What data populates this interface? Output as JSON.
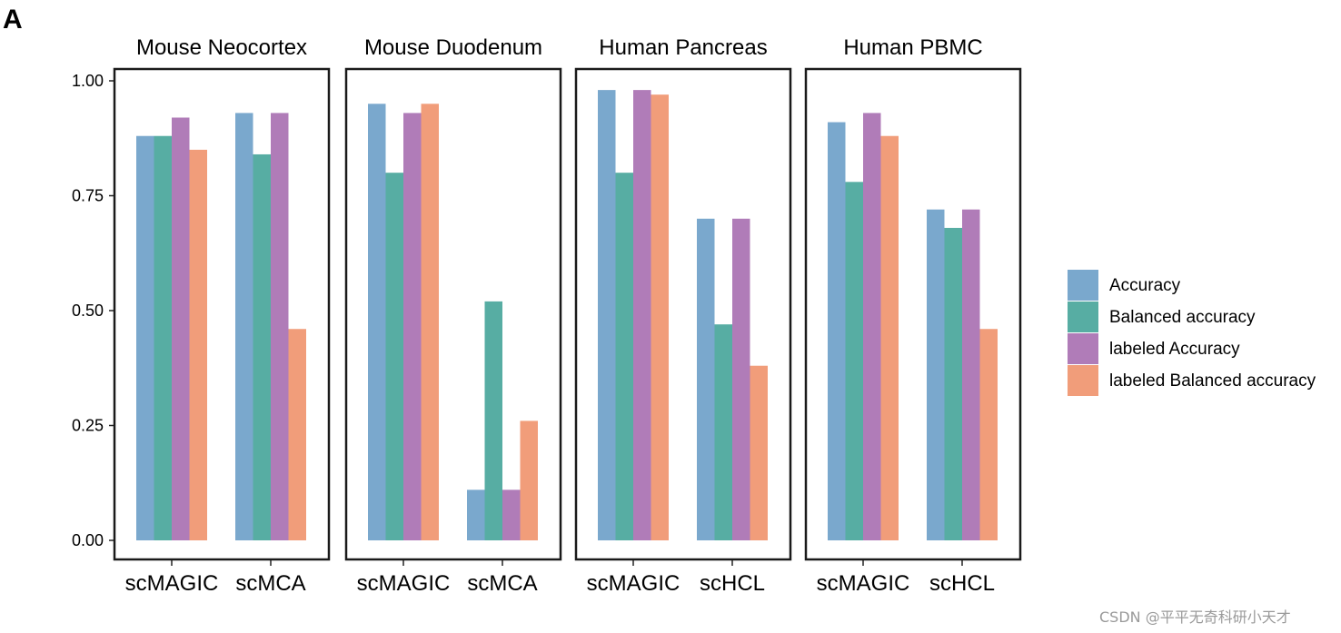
{
  "panel_label": "A",
  "watermark": "CSDN @平平无奇科研小天才",
  "colors": {
    "Accuracy": "#7aa8cd",
    "Balanced accuracy": "#57ada3",
    "labeled Accuracy": "#b07cb8",
    "labeled Balanced accuracy": "#f19d7a"
  },
  "chart_data": {
    "type": "bar",
    "ylim": [
      0,
      1.0
    ],
    "yticks": [
      0.0,
      0.25,
      0.5,
      0.75,
      1.0
    ],
    "ytick_labels": [
      "0.00",
      "0.25",
      "0.50",
      "0.75",
      "1.00"
    ],
    "legend_position": "right",
    "legend": [
      "Accuracy",
      "Balanced accuracy",
      "labeled Accuracy",
      "labeled Balanced accuracy"
    ],
    "facets": [
      {
        "title": "Mouse Neocortex",
        "categories": [
          "scMAGIC",
          "scMCA"
        ],
        "series": [
          {
            "name": "Accuracy",
            "values": [
              0.88,
              0.93
            ]
          },
          {
            "name": "Balanced accuracy",
            "values": [
              0.88,
              0.84
            ]
          },
          {
            "name": "labeled Accuracy",
            "values": [
              0.92,
              0.93
            ]
          },
          {
            "name": "labeled Balanced accuracy",
            "values": [
              0.85,
              0.46
            ]
          }
        ]
      },
      {
        "title": "Mouse Duodenum",
        "categories": [
          "scMAGIC",
          "scMCA"
        ],
        "series": [
          {
            "name": "Accuracy",
            "values": [
              0.95,
              0.11
            ]
          },
          {
            "name": "Balanced accuracy",
            "values": [
              0.8,
              0.52
            ]
          },
          {
            "name": "labeled Accuracy",
            "values": [
              0.93,
              0.11
            ]
          },
          {
            "name": "labeled Balanced accuracy",
            "values": [
              0.95,
              0.26
            ]
          }
        ]
      },
      {
        "title": "Human Pancreas",
        "categories": [
          "scMAGIC",
          "scHCL"
        ],
        "series": [
          {
            "name": "Accuracy",
            "values": [
              0.98,
              0.7
            ]
          },
          {
            "name": "Balanced accuracy",
            "values": [
              0.8,
              0.47
            ]
          },
          {
            "name": "labeled Accuracy",
            "values": [
              0.98,
              0.7
            ]
          },
          {
            "name": "labeled Balanced accuracy",
            "values": [
              0.97,
              0.38
            ]
          }
        ]
      },
      {
        "title": "Human PBMC",
        "categories": [
          "scMAGIC",
          "scHCL"
        ],
        "series": [
          {
            "name": "Accuracy",
            "values": [
              0.91,
              0.72
            ]
          },
          {
            "name": "Balanced accuracy",
            "values": [
              0.78,
              0.68
            ]
          },
          {
            "name": "labeled Accuracy",
            "values": [
              0.93,
              0.72
            ]
          },
          {
            "name": "labeled Balanced accuracy",
            "values": [
              0.88,
              0.46
            ]
          }
        ]
      }
    ]
  }
}
